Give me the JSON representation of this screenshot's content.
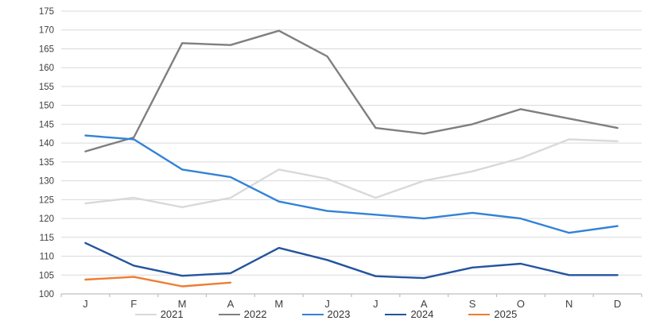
{
  "chart_data": {
    "type": "line",
    "title": "",
    "xlabel": "",
    "ylabel": "",
    "categories": [
      "J",
      "F",
      "M",
      "A",
      "M",
      "J",
      "J",
      "A",
      "S",
      "O",
      "N",
      "D"
    ],
    "y_axis": {
      "min": 100,
      "max": 175,
      "step": 5
    },
    "y_ticks": [
      100,
      105,
      110,
      115,
      120,
      125,
      130,
      135,
      140,
      145,
      150,
      155,
      160,
      165,
      170,
      175
    ],
    "grid": true,
    "legend_position": "bottom",
    "colors": {
      "axis_line": "#bfbfbf",
      "gridline": "#d9d9d9",
      "tick_text": "#404040"
    },
    "series": [
      {
        "name": "2021",
        "color": "#d9d9d9",
        "values": [
          124,
          125.5,
          123,
          125.5,
          133,
          130.5,
          125.5,
          130,
          132.5,
          136,
          141,
          140.5
        ]
      },
      {
        "name": "2022",
        "color": "#7f7f7f",
        "values": [
          137.8,
          141.5,
          166.5,
          166,
          169.8,
          163,
          144,
          142.5,
          145,
          149,
          146.5,
          144
        ]
      },
      {
        "name": "2023",
        "color": "#3282d7",
        "values": [
          142,
          141,
          133,
          131,
          124.5,
          122,
          121,
          120,
          121.5,
          120,
          116.2,
          118
        ]
      },
      {
        "name": "2024",
        "color": "#24549e",
        "values": [
          113.5,
          107.5,
          104.8,
          105.5,
          112.2,
          109,
          104.7,
          104.2,
          107,
          108,
          105,
          105
        ]
      },
      {
        "name": "2025",
        "color": "#ed7d31",
        "values": [
          103.8,
          104.5,
          102,
          103,
          null,
          null,
          null,
          null,
          null,
          null,
          null,
          null
        ]
      }
    ]
  }
}
